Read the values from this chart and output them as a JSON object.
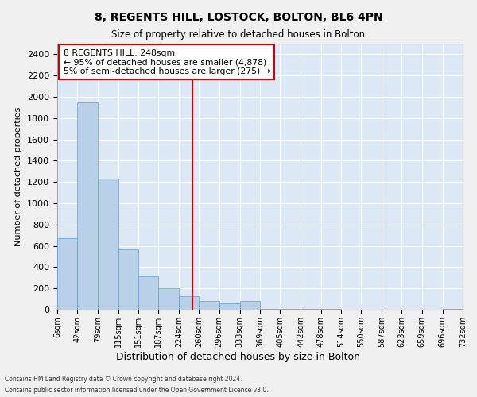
{
  "title": "8, REGENTS HILL, LOSTOCK, BOLTON, BL6 4PN",
  "subtitle": "Size of property relative to detached houses in Bolton",
  "xlabel": "Distribution of detached houses by size in Bolton",
  "ylabel": "Number of detached properties",
  "bar_color": "#b8d0e8",
  "bar_edge_color": "#6699cc",
  "background_color": "#dce8f5",
  "grid_color": "#ffffff",
  "annotation_box_color": "#cc0000",
  "vline_color": "#cc0000",
  "vline_x": 248,
  "annotation_title": "8 REGENTS HILL: 248sqm",
  "annotation_line1": "← 95% of detached houses are smaller (4,878)",
  "annotation_line2": "5% of semi-detached houses are larger (275) →",
  "footer1": "Contains HM Land Registry data © Crown copyright and database right 2024.",
  "footer2": "Contains public sector information licensed under the Open Government Licence v3.0.",
  "bin_edges": [
    6,
    42,
    79,
    115,
    151,
    187,
    224,
    260,
    296,
    333,
    369,
    405,
    442,
    478,
    514,
    550,
    587,
    623,
    659,
    696,
    732
  ],
  "bin_labels": [
    "6sqm",
    "42sqm",
    "79sqm",
    "115sqm",
    "151sqm",
    "187sqm",
    "224sqm",
    "260sqm",
    "296sqm",
    "333sqm",
    "369sqm",
    "405sqm",
    "442sqm",
    "478sqm",
    "514sqm",
    "550sqm",
    "587sqm",
    "623sqm",
    "659sqm",
    "696sqm",
    "732sqm"
  ],
  "bar_heights": [
    670,
    1950,
    1230,
    570,
    310,
    200,
    130,
    80,
    60,
    80,
    10,
    10,
    10,
    10,
    0,
    0,
    0,
    0,
    0,
    10
  ],
  "ylim": [
    0,
    2500
  ],
  "yticks": [
    0,
    200,
    400,
    600,
    800,
    1000,
    1200,
    1400,
    1600,
    1800,
    2000,
    2200,
    2400
  ]
}
